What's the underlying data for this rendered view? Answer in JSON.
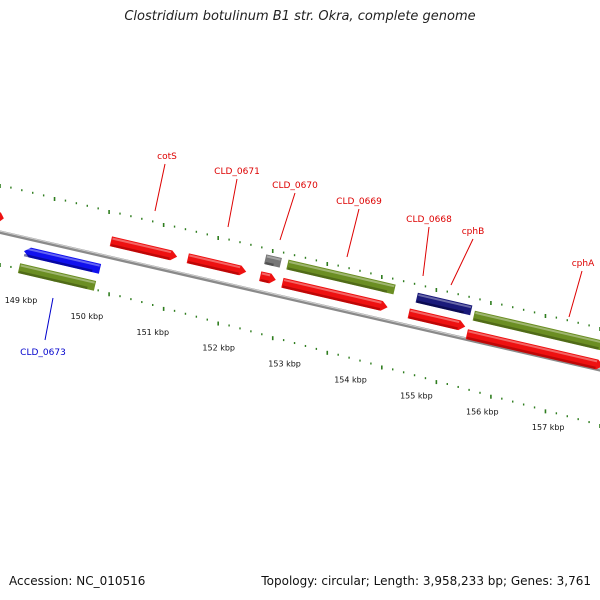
{
  "title": "Clostridium botulinum B1 str. Okra, complete genome",
  "footer": {
    "accession": "Accession: NC_010516",
    "topology": "Topology: circular; Length: 3,958,233 bp; Genes: 3,761"
  },
  "colors": {
    "backbone": "#8a8a8a",
    "tick": "#2e7d1e",
    "red_feature": "#ee1111",
    "olive_feature": "#6b8e23",
    "blue_feature": "#1111ee",
    "navy_feature": "#1a1a7a",
    "gray_feature": "#777777",
    "red_label": "#dd0000",
    "blue_label": "#0000cc"
  },
  "scale_labels": [
    "149 kbp",
    "150 kbp",
    "151 kbp",
    "152 kbp",
    "153 kbp",
    "154 kbp",
    "155 kbp",
    "156 kbp",
    "157 kbp"
  ],
  "gene_labels": [
    {
      "text": "cotS",
      "color": "red"
    },
    {
      "text": "CLD_0671",
      "color": "red"
    },
    {
      "text": "CLD_0670",
      "color": "red"
    },
    {
      "text": "CLD_0669",
      "color": "red"
    },
    {
      "text": "CLD_0668",
      "color": "red"
    },
    {
      "text": "cphB",
      "color": "red"
    },
    {
      "text": "cphA",
      "color": "red"
    },
    {
      "text": "CLD_0673",
      "color": "blue"
    }
  ]
}
